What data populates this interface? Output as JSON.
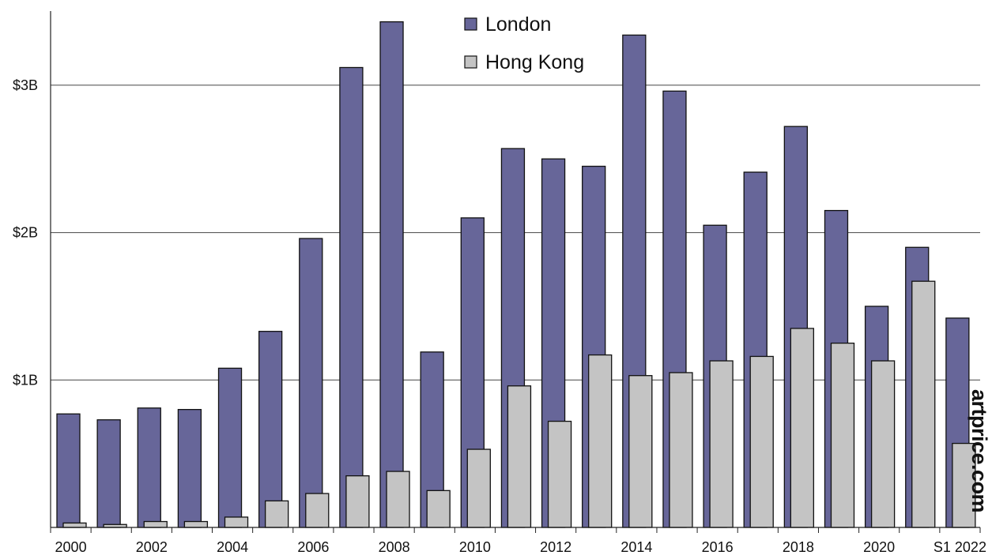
{
  "colors": {
    "london": "#676699",
    "hong_kong": "#c4c4c4",
    "bar_stroke": "#111111",
    "grid": "#444444"
  },
  "watermark": "artprice.com",
  "chart_data": {
    "type": "bar",
    "categories": [
      "2000",
      "2001",
      "2002",
      "2003",
      "2004",
      "2005",
      "2006",
      "2007",
      "2008",
      "2009",
      "2010",
      "2011",
      "2012",
      "2013",
      "2014",
      "2015",
      "2016",
      "2017",
      "2018",
      "2019",
      "2020",
      "2021",
      "S1 2022"
    ],
    "x_tick_labels": [
      "2000",
      "",
      "2002",
      "",
      "2004",
      "",
      "2006",
      "",
      "2008",
      "",
      "2010",
      "",
      "2012",
      "",
      "2014",
      "",
      "2016",
      "",
      "2018",
      "",
      "2020",
      "",
      "S1 2022"
    ],
    "series": [
      {
        "name": "London",
        "values": [
          0.77,
          0.73,
          0.81,
          0.8,
          1.08,
          1.33,
          1.96,
          3.12,
          3.43,
          1.19,
          2.1,
          2.57,
          2.5,
          2.45,
          3.34,
          2.96,
          2.05,
          2.41,
          2.72,
          2.15,
          1.5,
          1.9,
          1.42
        ]
      },
      {
        "name": "Hong Kong",
        "values": [
          0.03,
          0.02,
          0.04,
          0.04,
          0.07,
          0.18,
          0.23,
          0.35,
          0.38,
          0.25,
          0.53,
          0.96,
          0.72,
          1.17,
          1.03,
          1.05,
          1.13,
          1.16,
          1.35,
          1.25,
          1.13,
          1.67,
          0.57
        ]
      }
    ],
    "ylim": [
      0,
      3.5
    ],
    "y_ticks": [
      {
        "value": 1,
        "label": "$1B"
      },
      {
        "value": 2,
        "label": "$2B"
      },
      {
        "value": 3,
        "label": "$3B"
      }
    ],
    "title": "",
    "xlabel": "",
    "ylabel": "",
    "grid": "horizontal",
    "legend_position": "top-center"
  }
}
